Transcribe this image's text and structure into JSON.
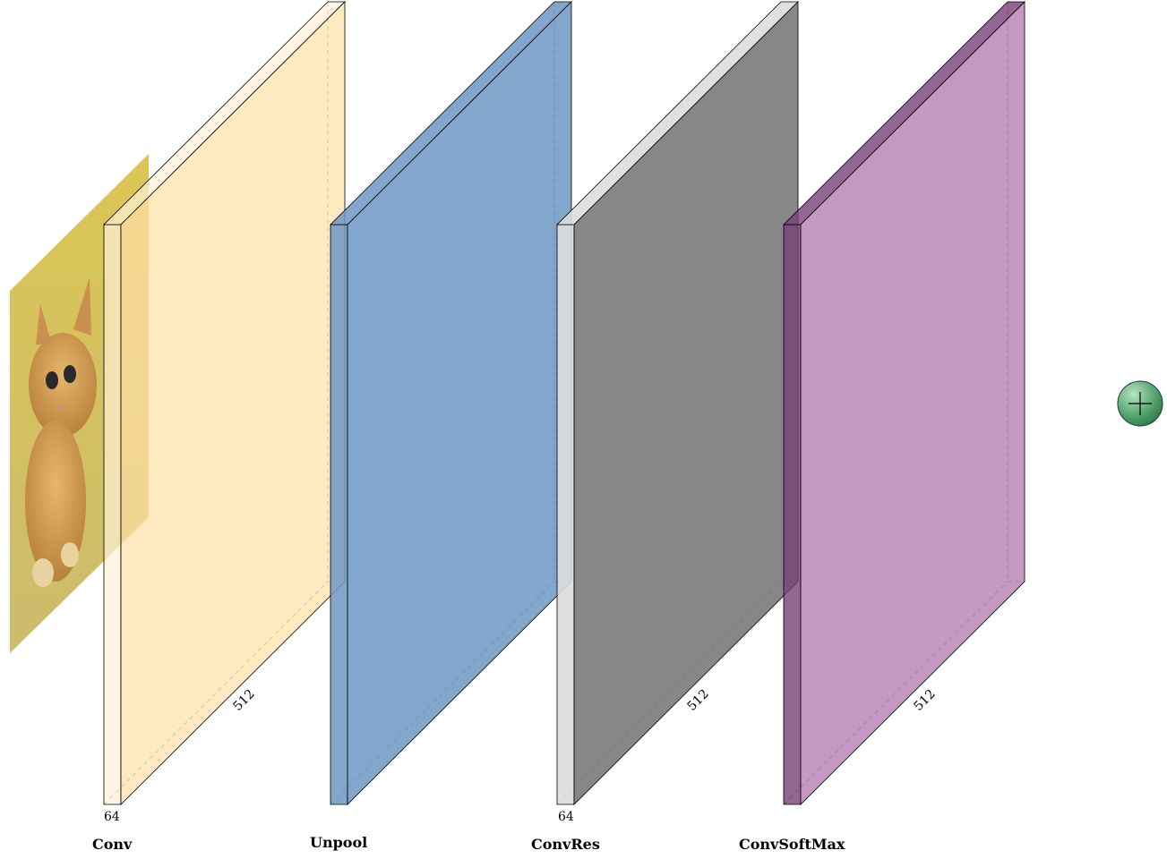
{
  "diagram": {
    "input_image": {
      "icon": "kitten-photo"
    },
    "layers": [
      {
        "id": "conv",
        "caption": "Conv",
        "depth_label": "64",
        "size_label": "512",
        "color": "#ffe0a6",
        "opacity": 0.7,
        "back_color": "#fff1d6"
      },
      {
        "id": "unpool",
        "caption": "Unpool",
        "depth_label": "",
        "size_label": "",
        "color": "#6d97c4",
        "opacity": 0.85,
        "back_color": "#6d97c4"
      },
      {
        "id": "convres",
        "caption": "ConvRes",
        "depth_label": "64",
        "size_label": "512",
        "color": "#7a7a7a",
        "opacity": 0.9,
        "back_color": "#dddddd"
      },
      {
        "id": "convsoftmax",
        "caption": "ConvSoftMax",
        "depth_label": "",
        "size_label": "512",
        "color": "#b47fb5",
        "opacity": 0.8,
        "back_color": "#7b3f78"
      }
    ],
    "sum_node": {
      "icon": "plus-circle-icon",
      "color": "#5aa874"
    }
  }
}
